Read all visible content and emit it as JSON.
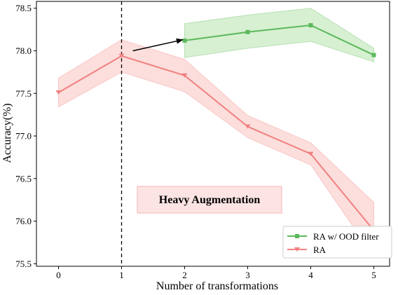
{
  "chart_data": {
    "type": "line",
    "xlabel": "Number of transformations",
    "ylabel": "Accuracy(%)",
    "xlim": [
      -0.35,
      5.25
    ],
    "ylim": [
      75.47,
      78.58
    ],
    "x_ticks": [
      0,
      1,
      2,
      3,
      4,
      5
    ],
    "y_ticks": [
      75.5,
      76.0,
      76.5,
      77.0,
      77.5,
      78.0,
      78.5
    ],
    "y_tick_labels": [
      "75.5",
      "76.0",
      "76.5",
      "77.0",
      "77.5",
      "78.0",
      "78.5"
    ],
    "grid": false,
    "legend_position": "bottom-right",
    "series": [
      {
        "name": "RA w/ OOD filter",
        "color": "#5cb85c",
        "band_color": "#c8ebc2",
        "marker": "square",
        "x": [
          2,
          3,
          4,
          5
        ],
        "values": [
          78.12,
          78.22,
          78.3,
          77.95
        ],
        "lower": [
          77.92,
          78.03,
          78.11,
          77.87
        ],
        "upper": [
          78.32,
          78.42,
          78.5,
          78.03
        ]
      },
      {
        "name": "RA",
        "color": "#f08080",
        "band_color": "#fbd3d0",
        "marker": "triangle-down",
        "x": [
          0,
          1,
          2,
          3,
          4,
          5
        ],
        "values": [
          77.51,
          77.94,
          77.71,
          77.11,
          76.79,
          75.89
        ],
        "lower": [
          77.34,
          77.75,
          77.52,
          76.98,
          76.66,
          75.58
        ],
        "upper": [
          77.68,
          78.13,
          77.9,
          77.24,
          76.92,
          76.22
        ]
      }
    ],
    "vertical_line": {
      "x": 1,
      "style": "dashed"
    },
    "arrow": {
      "from": [
        1.18,
        78.0
      ],
      "to": [
        1.97,
        78.13
      ]
    },
    "annotation": {
      "text": "Heavy Augmentation",
      "box_color": "#fde4e4",
      "border_color": "#f5b5b5"
    }
  }
}
